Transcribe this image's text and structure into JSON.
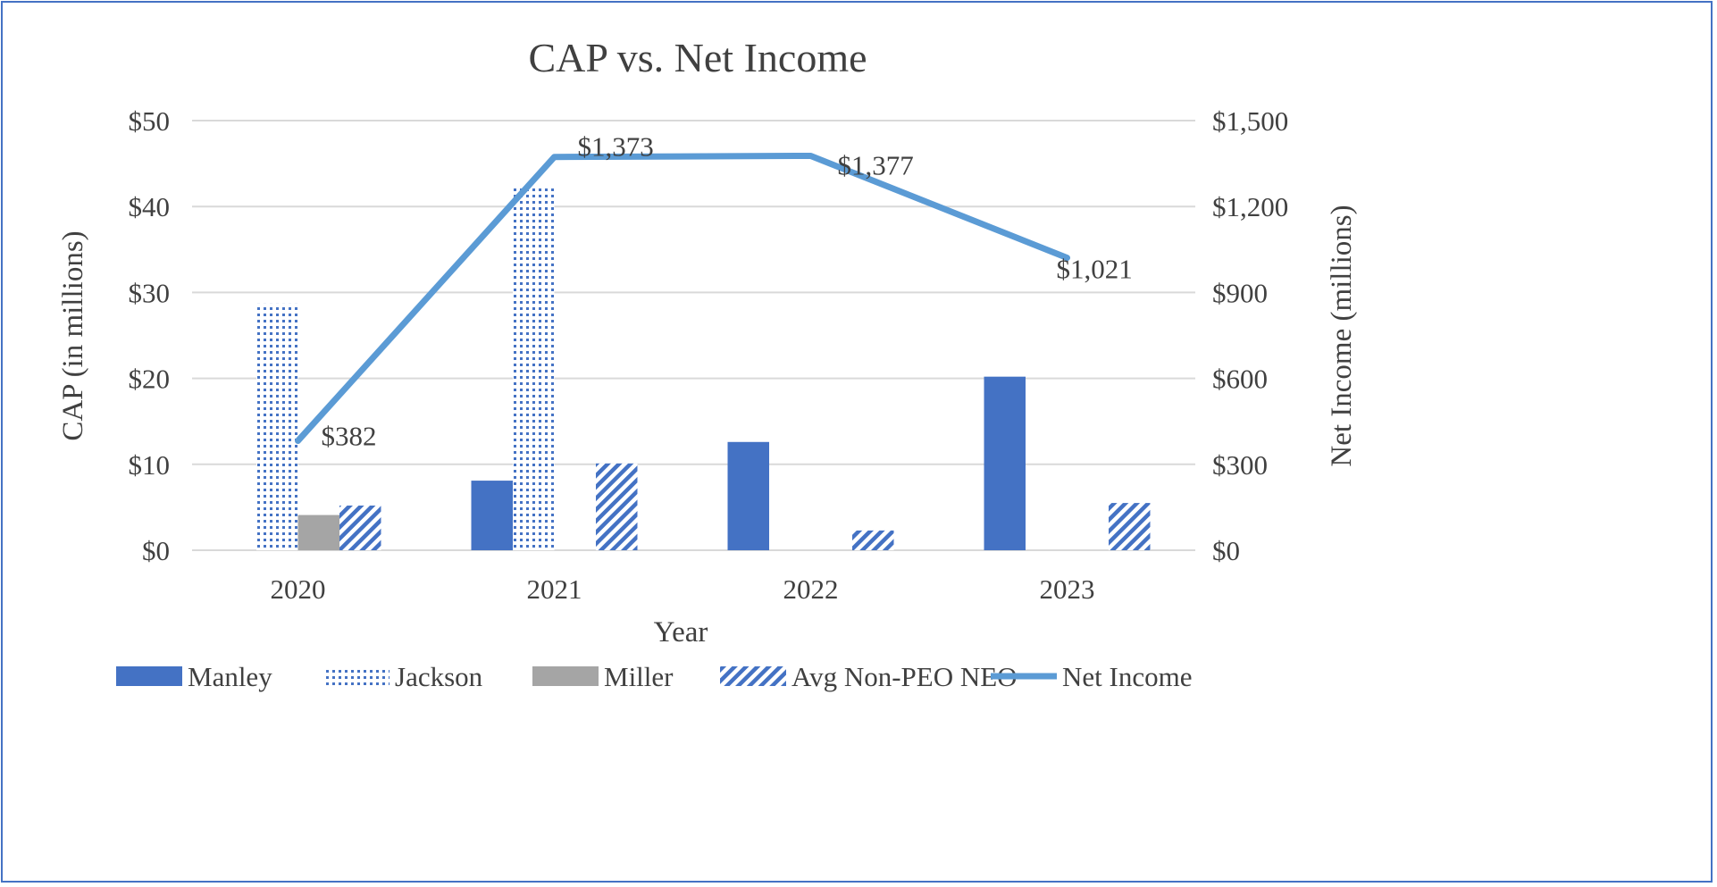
{
  "chart_data": {
    "type": "bar",
    "title": "CAP vs. Net Income",
    "xlabel": "Year",
    "ylabel": "CAP (in millions)",
    "y2label": "Net Income (millions)",
    "categories": [
      "2020",
      "2021",
      "2022",
      "2023"
    ],
    "ylim": [
      0,
      50
    ],
    "y_ticks": [
      0,
      10,
      20,
      30,
      40,
      50
    ],
    "y_tick_labels": [
      "$0",
      "$10",
      "$20",
      "$30",
      "$40",
      "$50"
    ],
    "y2lim": [
      0,
      1500
    ],
    "y2_ticks": [
      0,
      300,
      600,
      900,
      1200,
      1500
    ],
    "y2_tick_labels": [
      "$0",
      "$300",
      "$600",
      "$900",
      "$1,200",
      "$1,500"
    ],
    "grid": true,
    "legend_position": "bottom",
    "series": [
      {
        "name": "Manley",
        "kind": "bar",
        "pattern": "solid",
        "color": "#4472c4",
        "values": [
          null,
          8.1,
          12.6,
          20.2
        ]
      },
      {
        "name": "Jackson",
        "kind": "bar",
        "pattern": "dots",
        "color": "#4472c4",
        "values": [
          28.7,
          42.1,
          null,
          null
        ]
      },
      {
        "name": "Miller",
        "kind": "bar",
        "pattern": "solid",
        "color": "#a5a5a5",
        "values": [
          4.1,
          null,
          null,
          null
        ]
      },
      {
        "name": "Avg Non-PEO NEO",
        "kind": "bar",
        "pattern": "diagonal",
        "color": "#4472c4",
        "values": [
          5.2,
          10.1,
          2.3,
          5.5
        ]
      },
      {
        "name": "Net Income",
        "kind": "line",
        "axis": "right",
        "color": "#5b9bd5",
        "values": [
          382,
          1373,
          1377,
          1021
        ],
        "data_labels": [
          "$382",
          "$1,373",
          "$1,377",
          "$1,021"
        ]
      }
    ]
  }
}
